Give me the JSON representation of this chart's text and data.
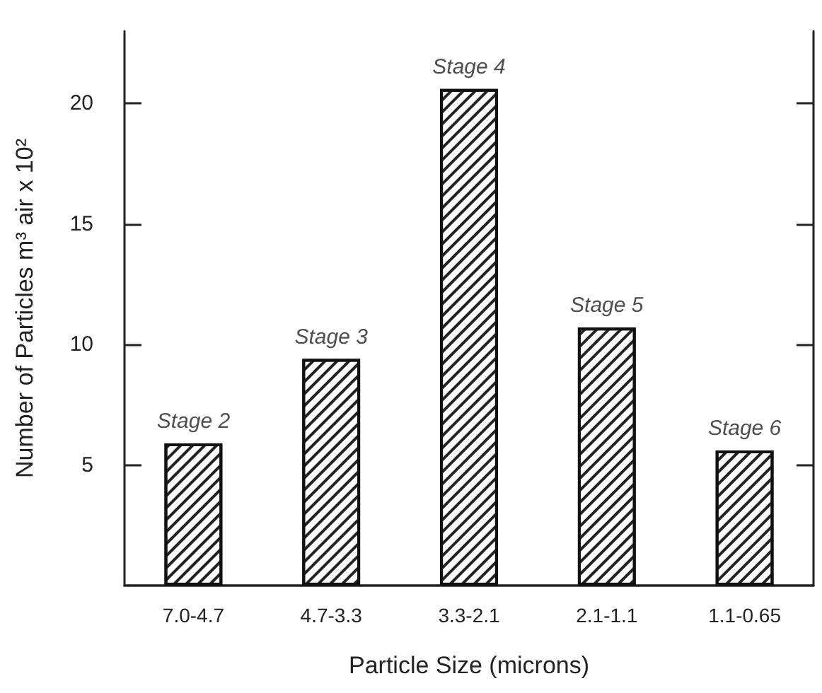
{
  "chart_data": {
    "type": "bar",
    "categories": [
      "7.0-4.7",
      "4.7-3.3",
      "3.3-2.1",
      "2.1-1.1",
      "1.1-0.65"
    ],
    "values": [
      5.9,
      9.4,
      20.6,
      10.7,
      5.6
    ],
    "color": "#ffffff",
    "xlabel": "Particle Size (microns)",
    "ylabel": "Number of Particles m³ air x 10²",
    "ylim": [
      0,
      23
    ],
    "yticks": [
      5,
      10,
      15,
      20
    ],
    "grid": false,
    "annotations": [
      {
        "text": "Stage 2",
        "x": "7.0-4.7",
        "y": 5.9
      },
      {
        "text": "Stage 3",
        "x": "4.7-3.3",
        "y": 9.4
      },
      {
        "text": "Stage 4",
        "x": "3.3-2.1",
        "y": 20.6
      },
      {
        "text": "Stage 5",
        "x": "2.1-1.1",
        "y": 10.7
      },
      {
        "text": "Stage 6",
        "x": "1.1-0.65",
        "y": 5.6
      }
    ]
  }
}
